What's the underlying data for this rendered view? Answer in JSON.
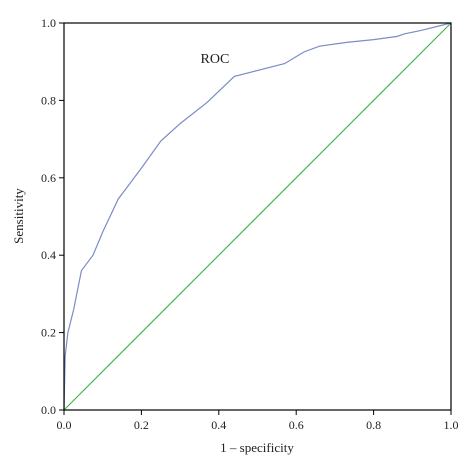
{
  "chart_data": {
    "type": "line",
    "xlabel": "1 – specificity",
    "ylabel": "Sensitivity",
    "xlim": [
      0,
      1
    ],
    "ylim": [
      0,
      1
    ],
    "xticks": [
      "0.0",
      "0.2",
      "0.4",
      "0.6",
      "0.8",
      "1.0"
    ],
    "yticks": [
      "0.0",
      "0.2",
      "0.4",
      "0.6",
      "0.8",
      "1.0"
    ],
    "grid": false,
    "annotations": [
      {
        "text": "ROC",
        "x": 0.39,
        "y": 0.91
      }
    ],
    "series": [
      {
        "color": "#7a8cc6",
        "x": [
          0.0,
          0.003,
          0.01,
          0.025,
          0.045,
          0.075,
          0.1,
          0.14,
          0.2,
          0.25,
          0.3,
          0.37,
          0.44,
          0.57,
          0.62,
          0.66,
          0.73,
          0.8,
          0.86,
          0.88,
          0.92,
          1.0
        ],
        "y": [
          0.0,
          0.14,
          0.2,
          0.26,
          0.36,
          0.4,
          0.46,
          0.545,
          0.625,
          0.695,
          0.74,
          0.795,
          0.862,
          0.895,
          0.925,
          0.94,
          0.95,
          0.957,
          0.965,
          0.972,
          0.98,
          1.0
        ]
      },
      {
        "color": "#4ab84a",
        "x": [
          0,
          1
        ],
        "y": [
          0,
          1
        ]
      }
    ]
  }
}
